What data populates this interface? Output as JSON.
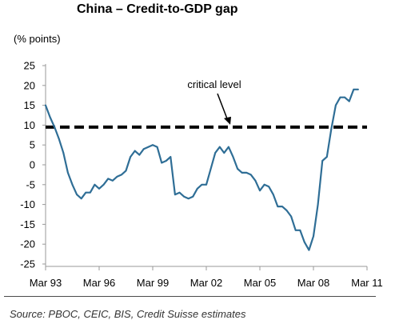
{
  "title": "China – Credit-to-GDP gap",
  "unit_label": "(% points)",
  "source": "Source: PBOC, CEIC, BIS, Credit Suisse estimates",
  "colors": {
    "series": "#2f6e96",
    "reference": "#000000",
    "axis": "#999999"
  },
  "chart_data": {
    "type": "line",
    "xlabel": "",
    "ylabel": "(% points)",
    "xlim": [
      1993.0,
      2011.0
    ],
    "ylim": [
      -25,
      25
    ],
    "yticks": [
      25,
      20,
      15,
      10,
      5,
      0,
      -5,
      -10,
      -15,
      -20,
      -25
    ],
    "xticks": [
      1993,
      1996,
      1999,
      2002,
      2005,
      2008,
      2011
    ],
    "xtick_labels": [
      "Mar 93",
      "Mar 96",
      "Mar 99",
      "Mar 02",
      "Mar 05",
      "Mar 08",
      "Mar 11"
    ],
    "grid": false,
    "legend": "none",
    "reference_line": {
      "value": 9.5,
      "style": "dashed",
      "label": "critical level"
    },
    "series": [
      {
        "x": [
          1993.0,
          1993.25,
          1993.5,
          1993.75,
          1994.0,
          1994.25,
          1994.5,
          1994.75,
          1995.0,
          1995.25,
          1995.5,
          1995.75,
          1996.0,
          1996.25,
          1996.5,
          1996.75,
          1997.0,
          1997.25,
          1997.5,
          1997.75,
          1998.0,
          1998.25,
          1998.5,
          1998.75,
          1999.0,
          1999.25,
          1999.5,
          1999.75,
          2000.0,
          2000.25,
          2000.5,
          2000.75,
          2001.0,
          2001.25,
          2001.5,
          2001.75,
          2002.0,
          2002.25,
          2002.5,
          2002.75,
          2003.0,
          2003.25,
          2003.5,
          2003.75,
          2004.0,
          2004.25,
          2004.5,
          2004.75,
          2005.0,
          2005.25,
          2005.5,
          2005.75,
          2006.0,
          2006.25,
          2006.5,
          2006.75,
          2007.0,
          2007.25,
          2007.5,
          2007.75,
          2008.0,
          2008.25,
          2008.5,
          2008.75,
          2009.0,
          2009.25,
          2009.5,
          2009.75,
          2010.0,
          2010.25,
          2010.5
        ],
        "y": [
          15,
          12,
          9.5,
          6.5,
          3,
          -2,
          -5,
          -7.5,
          -8.5,
          -7,
          -7,
          -5,
          -6,
          -5,
          -3.5,
          -4,
          -3,
          -2.5,
          -1.5,
          2,
          3.5,
          2.5,
          4,
          4.5,
          5,
          4.5,
          0.5,
          1,
          2,
          -7.5,
          -7,
          -8,
          -8.5,
          -8,
          -6,
          -5,
          -5,
          -1,
          3,
          4.5,
          3,
          4.5,
          2,
          -1,
          -2,
          -2,
          -2.5,
          -4,
          -6.5,
          -5,
          -5.5,
          -7.5,
          -10.5,
          -10.5,
          -11.5,
          -13,
          -16.5,
          -16.5,
          -19.5,
          -21.5,
          -18,
          -10,
          1,
          2,
          9,
          15,
          17,
          17,
          16,
          19,
          19
        ]
      }
    ]
  }
}
